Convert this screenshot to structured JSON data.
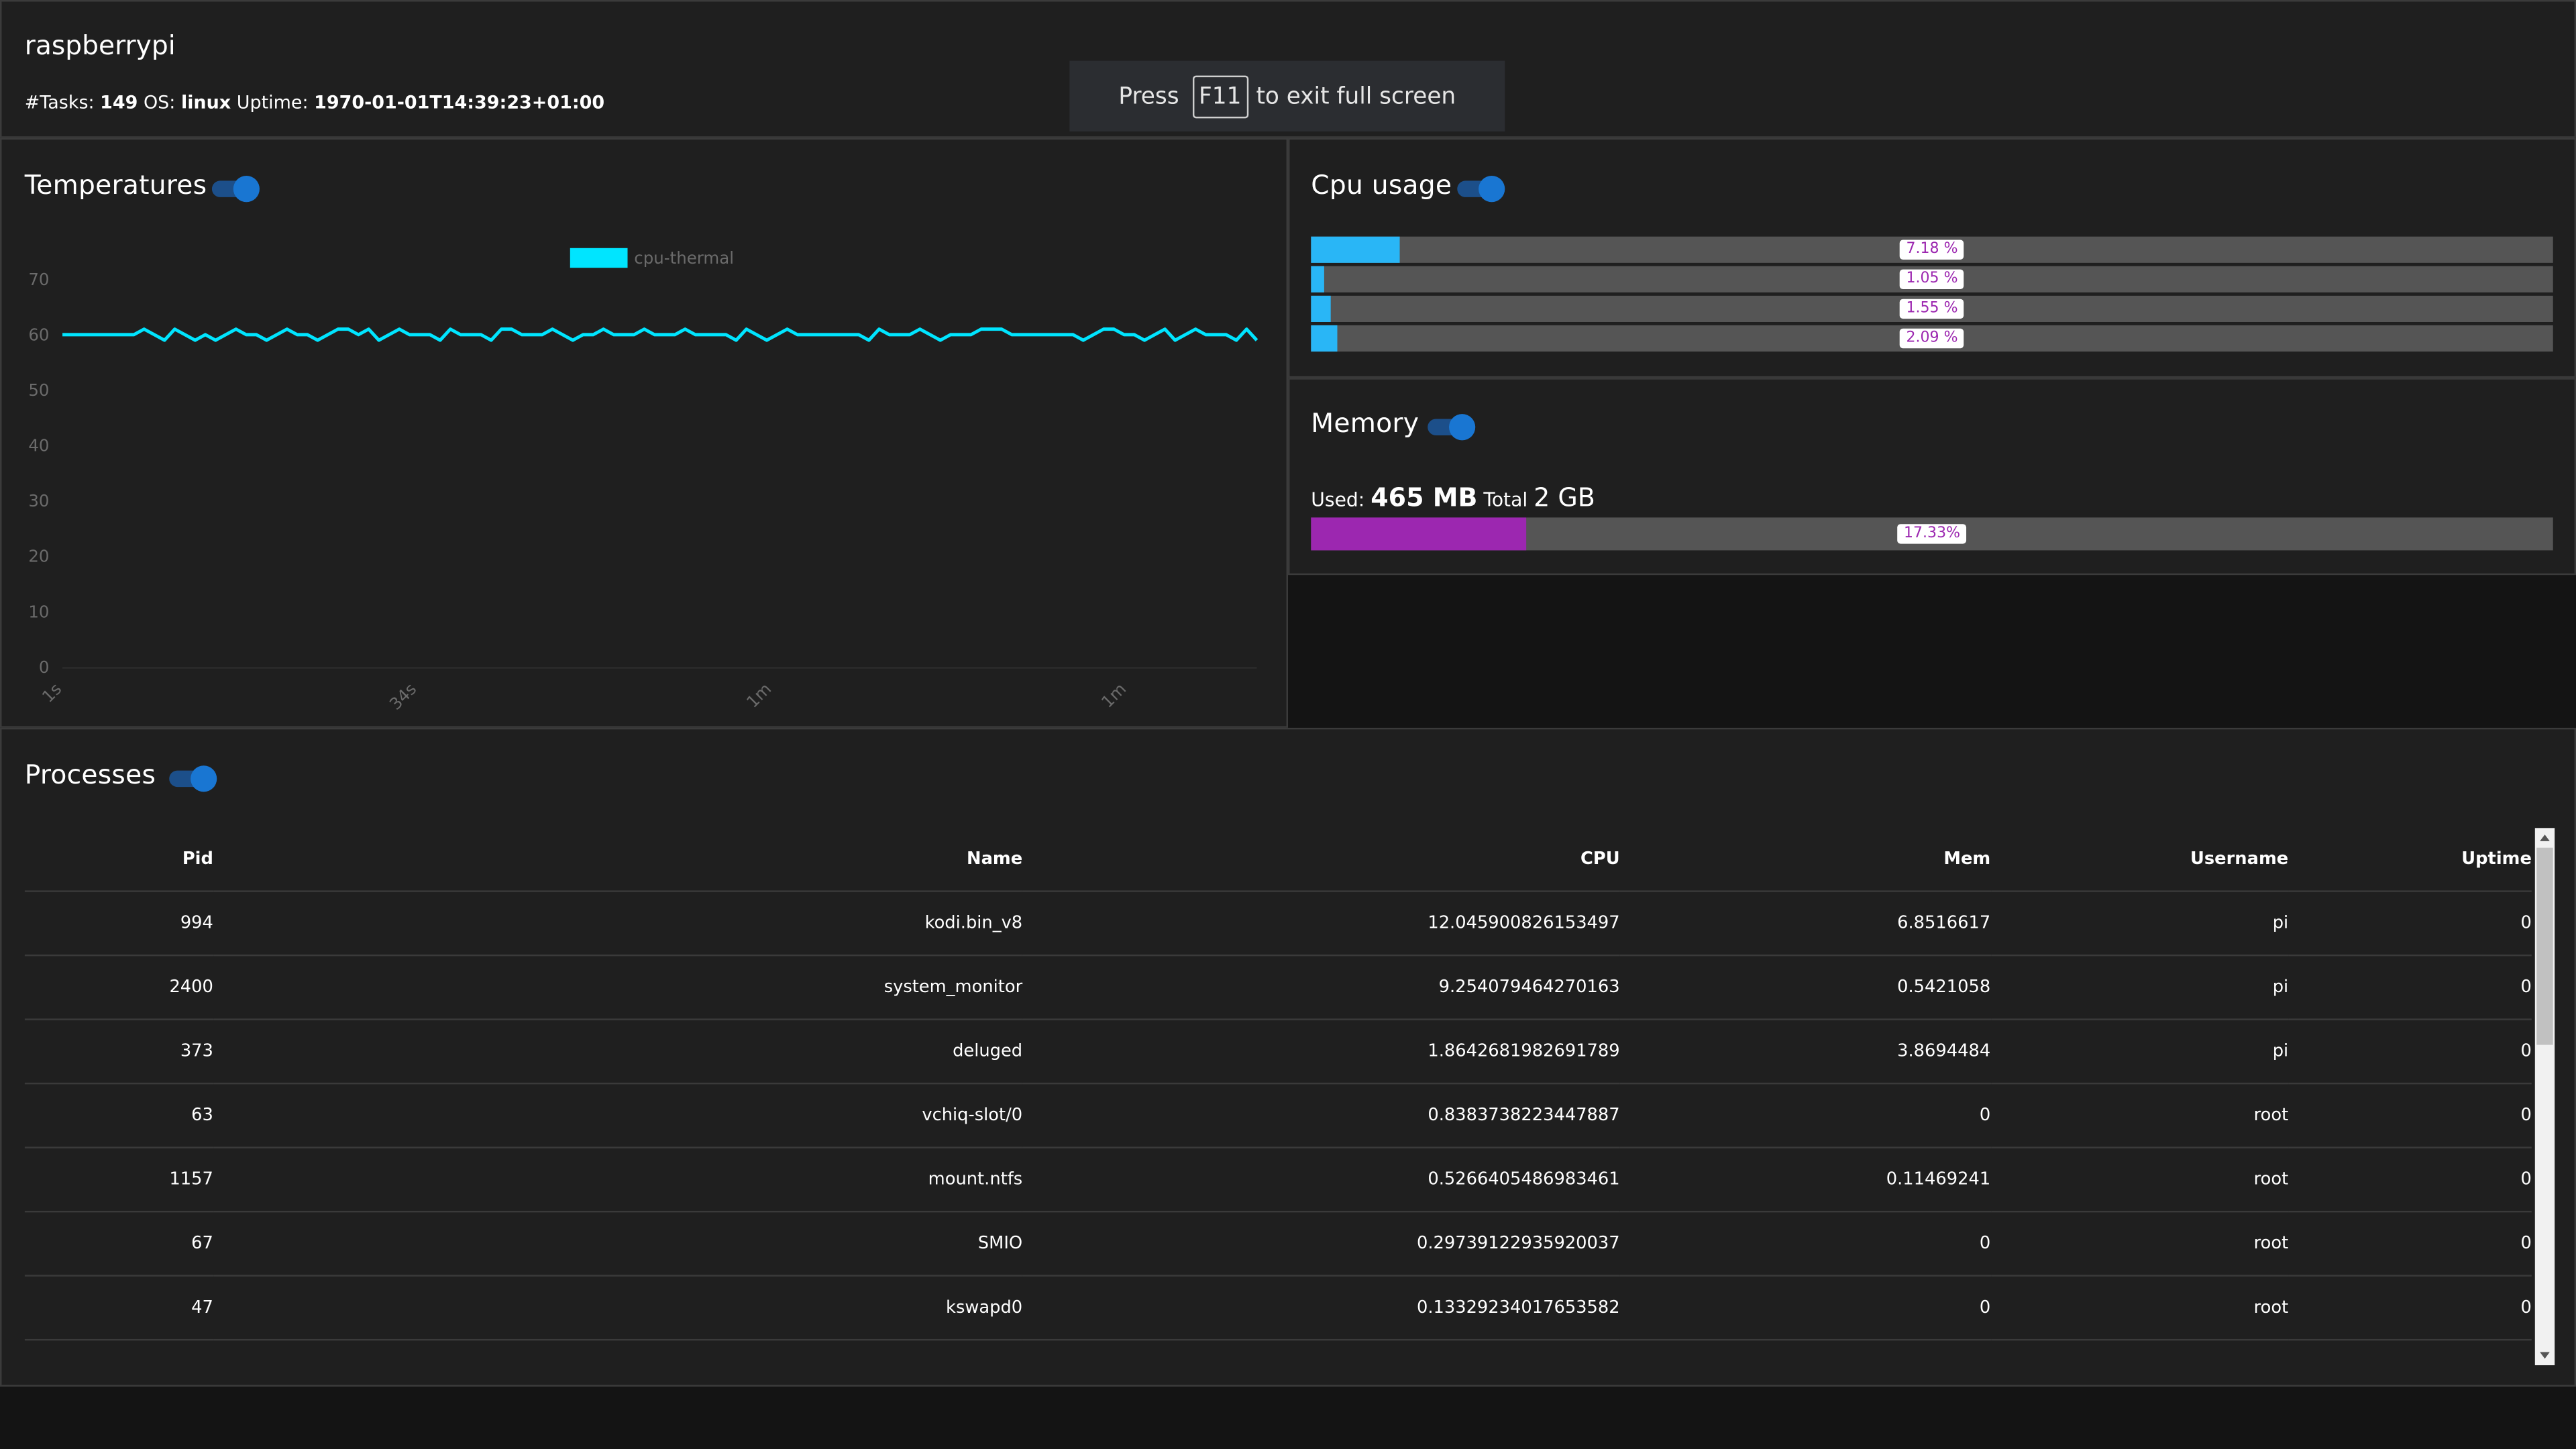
{
  "header": {
    "hostname": "raspberrypi",
    "tasks_label": "#Tasks:",
    "tasks_value": "149",
    "os_label": "OS:",
    "os_value": "linux",
    "uptime_label": "Uptime:",
    "uptime_value": "1970-01-01T14:39:23+01:00"
  },
  "fullscreen_notice": {
    "prefix": "Press",
    "key": "F11",
    "suffix": "to exit full screen"
  },
  "temperatures": {
    "title": "Temperatures",
    "toggle_on": true
  },
  "chart_data": {
    "type": "line",
    "title": "",
    "xlabel": "",
    "ylabel": "",
    "ylim": [
      0,
      70
    ],
    "y_ticks": [
      "0",
      "10",
      "20",
      "30",
      "40",
      "50",
      "60",
      "70"
    ],
    "x_ticks": [
      "1s",
      "34s",
      "1m",
      "1m"
    ],
    "legend_position": "top-center",
    "grid": false,
    "series": [
      {
        "name": "cpu-thermal",
        "color": "#00e5ff",
        "values": [
          60,
          60,
          60,
          60,
          60,
          60,
          60,
          60,
          61,
          60,
          59,
          61,
          60,
          59,
          60,
          59,
          60,
          61,
          60,
          60,
          59,
          60,
          61,
          60,
          60,
          59,
          60,
          61,
          61,
          60,
          61,
          59,
          60,
          61,
          60,
          60,
          60,
          59,
          61,
          60,
          60,
          60,
          59,
          61,
          61,
          60,
          60,
          60,
          61,
          60,
          59,
          60,
          60,
          61,
          60,
          60,
          60,
          61,
          60,
          60,
          60,
          61,
          60,
          60,
          60,
          60,
          59,
          61,
          60,
          59,
          60,
          61,
          60,
          60,
          60,
          60,
          60,
          60,
          60,
          59,
          61,
          60,
          60,
          60,
          61,
          60,
          59,
          60,
          60,
          60,
          61,
          61,
          61,
          60,
          60,
          60,
          60,
          60,
          60,
          60,
          59,
          60,
          61,
          61,
          60,
          60,
          59,
          60,
          61,
          59,
          60,
          61,
          60,
          60,
          60,
          59,
          61,
          59
        ]
      }
    ]
  },
  "cpu": {
    "title": "Cpu usage",
    "toggle_on": true,
    "fill_color": "#29b6f6",
    "cores": [
      {
        "percent": 7.18,
        "label": "7.18 %"
      },
      {
        "percent": 1.05,
        "label": "1.05 %"
      },
      {
        "percent": 1.55,
        "label": "1.55 %"
      },
      {
        "percent": 2.09,
        "label": "2.09 %"
      }
    ]
  },
  "memory": {
    "title": "Memory",
    "toggle_on": true,
    "used_label": "Used:",
    "used_value": "465 MB",
    "total_label": "Total",
    "total_value": "2 GB",
    "percent": 17.33,
    "percent_label": "17.33%",
    "fill_color": "#9c27b0"
  },
  "processes": {
    "title": "Processes",
    "toggle_on": true,
    "columns": [
      "Pid",
      "Name",
      "CPU",
      "Mem",
      "Username",
      "Uptime"
    ],
    "rows": [
      [
        "994",
        "kodi.bin_v8",
        "12.045900826153497",
        "6.8516617",
        "pi",
        "0"
      ],
      [
        "2400",
        "system_monitor",
        "9.254079464270163",
        "0.5421058",
        "pi",
        "0"
      ],
      [
        "373",
        "deluged",
        "1.8642681982691789",
        "3.8694484",
        "pi",
        "0"
      ],
      [
        "63",
        "vchiq-slot/0",
        "0.8383738223447887",
        "0",
        "root",
        "0"
      ],
      [
        "1157",
        "mount.ntfs",
        "0.5266405486983461",
        "0.11469241",
        "root",
        "0"
      ],
      [
        "67",
        "SMIO",
        "0.29739122935920037",
        "0",
        "root",
        "0"
      ],
      [
        "47",
        "kswapd0",
        "0.13329234017653582",
        "0",
        "root",
        "0"
      ]
    ]
  }
}
